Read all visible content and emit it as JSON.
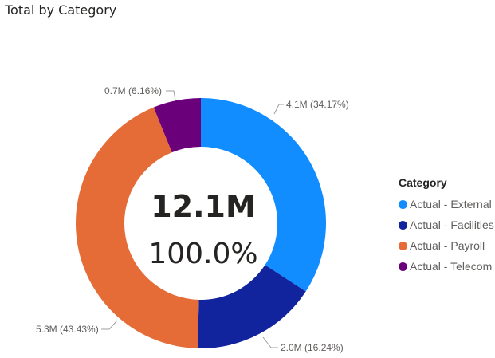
{
  "chart_data": {
    "type": "pie",
    "subtype": "donut",
    "title": "Total by Category",
    "legend_title": "Category",
    "legend_position": "right",
    "categories": [
      "Actual - External",
      "Actual - Facilities",
      "Actual - Payroll",
      "Actual - Telecom"
    ],
    "values": [
      4.1,
      2.0,
      5.3,
      0.7
    ],
    "percentages": [
      34.17,
      16.24,
      43.43,
      6.16
    ],
    "units": "M",
    "data_labels": [
      "4.1M (34.17%)",
      "2.0M (16.24%)",
      "5.3M (43.43%)",
      "0.7M (6.16%)"
    ],
    "colors": [
      "#118DFF",
      "#12239E",
      "#E66C37",
      "#6B007B"
    ],
    "center_total": "12.1M",
    "center_percent": "100.0%"
  },
  "header": {
    "title": "Total by Category"
  },
  "legend": {
    "title": "Category",
    "items": [
      {
        "label": "Actual - External",
        "color": "#118DFF"
      },
      {
        "label": "Actual - Facilities",
        "color": "#12239E"
      },
      {
        "label": "Actual - Payroll",
        "color": "#E66C37"
      },
      {
        "label": "Actual - Telecom",
        "color": "#6B007B"
      }
    ]
  },
  "center": {
    "value": "12.1M",
    "percent": "100.0%"
  },
  "labels": {
    "external": "4.1M (34.17%)",
    "facilities": "2.0M (16.24%)",
    "payroll": "5.3M (43.43%)",
    "telecom": "0.7M (6.16%)"
  }
}
